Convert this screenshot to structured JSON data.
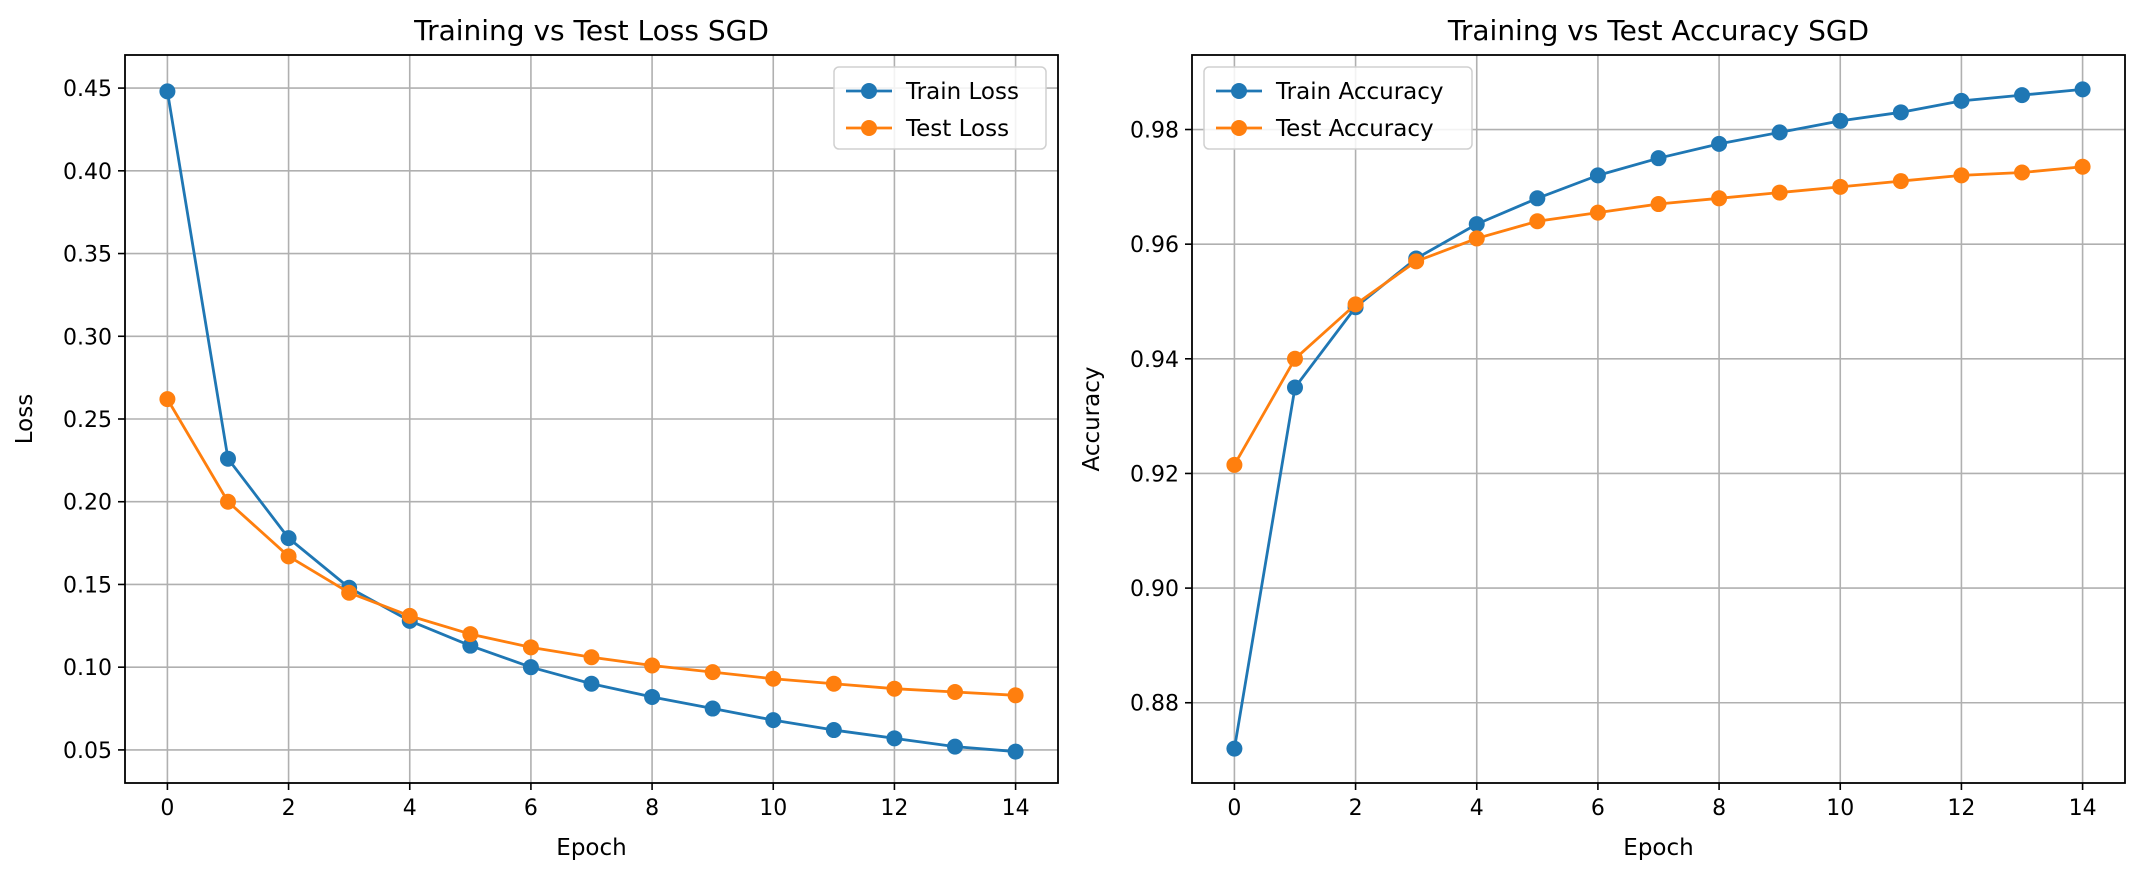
{
  "chart_data": [
    {
      "type": "line",
      "title": "Training vs Test Loss SGD",
      "xlabel": "Epoch",
      "ylabel": "Loss",
      "x": [
        0,
        1,
        2,
        3,
        4,
        5,
        6,
        7,
        8,
        9,
        10,
        11,
        12,
        13,
        14
      ],
      "xlim": [
        -0.7,
        14.7
      ],
      "ylim": [
        0.03,
        0.47
      ],
      "xticks": [
        0,
        2,
        4,
        6,
        8,
        10,
        12,
        14
      ],
      "yticks": [
        0.05,
        0.1,
        0.15,
        0.2,
        0.25,
        0.3,
        0.35,
        0.4,
        0.45
      ],
      "ytick_labels": [
        "0.05",
        "0.10",
        "0.15",
        "0.20",
        "0.25",
        "0.30",
        "0.35",
        "0.40",
        "0.45"
      ],
      "grid": true,
      "legend_position": "top-right",
      "series": [
        {
          "name": "Train Loss",
          "color": "#1f77b4",
          "values": [
            0.448,
            0.226,
            0.178,
            0.148,
            0.128,
            0.113,
            0.1,
            0.09,
            0.082,
            0.075,
            0.068,
            0.062,
            0.057,
            0.052,
            0.049
          ]
        },
        {
          "name": "Test Loss",
          "color": "#ff7f0e",
          "values": [
            0.262,
            0.2,
            0.167,
            0.145,
            0.131,
            0.12,
            0.112,
            0.106,
            0.101,
            0.097,
            0.093,
            0.09,
            0.087,
            0.085,
            0.083
          ]
        }
      ]
    },
    {
      "type": "line",
      "title": "Training vs Test Accuracy SGD",
      "xlabel": "Epoch",
      "ylabel": "Accuracy",
      "x": [
        0,
        1,
        2,
        3,
        4,
        5,
        6,
        7,
        8,
        9,
        10,
        11,
        12,
        13,
        14
      ],
      "xlim": [
        -0.7,
        14.7
      ],
      "ylim": [
        0.866,
        0.993
      ],
      "xticks": [
        0,
        2,
        4,
        6,
        8,
        10,
        12,
        14
      ],
      "yticks": [
        0.88,
        0.9,
        0.92,
        0.94,
        0.96,
        0.98
      ],
      "ytick_labels": [
        "0.88",
        "0.90",
        "0.92",
        "0.94",
        "0.96",
        "0.98"
      ],
      "grid": true,
      "legend_position": "top-left",
      "series": [
        {
          "name": "Train Accuracy",
          "color": "#1f77b4",
          "values": [
            0.872,
            0.935,
            0.949,
            0.9575,
            0.9635,
            0.968,
            0.972,
            0.975,
            0.9775,
            0.9795,
            0.9815,
            0.983,
            0.985,
            0.986,
            0.987
          ]
        },
        {
          "name": "Test Accuracy",
          "color": "#ff7f0e",
          "values": [
            0.9215,
            0.94,
            0.9495,
            0.957,
            0.961,
            0.964,
            0.9655,
            0.967,
            0.968,
            0.969,
            0.97,
            0.971,
            0.972,
            0.9725,
            0.9735
          ]
        }
      ]
    }
  ]
}
